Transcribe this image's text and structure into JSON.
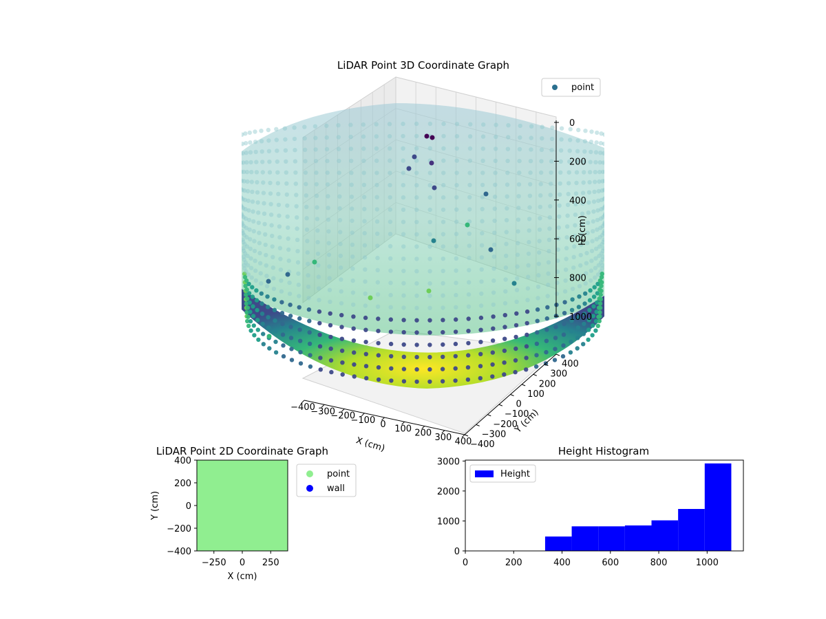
{
  "chart_data": [
    {
      "type": "scatter",
      "projection": "3d",
      "title": "LiDAR Point 3D Coordinate Graph",
      "xlabel": "X (cm)",
      "ylabel": "Y (cm)",
      "zlabel": "H (cm)",
      "xlim": [
        -400,
        400
      ],
      "ylim": [
        -400,
        400
      ],
      "zlim": [
        0,
        1000
      ],
      "z_inverted": true,
      "x_ticks": [
        "−400",
        "−300",
        "−200",
        "−100",
        "0",
        "100",
        "200",
        "300",
        "400"
      ],
      "y_ticks": [
        "−400",
        "−300",
        "−200",
        "−100",
        "0",
        "100",
        "200",
        "300",
        "400"
      ],
      "z_ticks": [
        "0",
        "200",
        "400",
        "600",
        "800",
        "1000"
      ],
      "colormap": "viridis",
      "legend": {
        "position": "top-right",
        "entries": [
          "point"
        ]
      },
      "series": [
        {
          "name": "point",
          "description_of_shape": "hemispherical bowl of points, height increasing toward the center, ~800 cm radius, max height ~1100 cm",
          "sample_outliers": [
            {
              "x": -40,
              "y": 200,
              "h": 60
            },
            {
              "x": -30,
              "y": 210,
              "h": 70
            },
            {
              "x": -100,
              "y": 150,
              "h": 230
            },
            {
              "x": 120,
              "y": -80,
              "h": 520
            },
            {
              "x": -300,
              "y": -100,
              "h": 760
            },
            {
              "x": 200,
              "y": -250,
              "h": 780
            }
          ]
        }
      ],
      "grid": true
    },
    {
      "type": "scatter",
      "title": "LiDAR Point 2D Coordinate Graph",
      "xlabel": "X (cm)",
      "ylabel": "Y (cm)",
      "xlim": [
        -400,
        400
      ],
      "ylim": [
        -400,
        400
      ],
      "x_ticks": [
        "−250",
        "0",
        "250"
      ],
      "y_ticks": [
        "400",
        "200",
        "0",
        "−200",
        "−400"
      ],
      "legend": {
        "position": "outside-right",
        "entries": [
          "point",
          "wall"
        ]
      },
      "series": [
        {
          "name": "point",
          "color": "#90ee90",
          "coverage": "fills entire plot area"
        },
        {
          "name": "wall",
          "color": "#0000ff"
        }
      ]
    },
    {
      "type": "bar",
      "subtype": "histogram",
      "title": "Height Histogram",
      "xlim": [
        0,
        1150
      ],
      "ylim": [
        0,
        3000
      ],
      "x_ticks": [
        "0",
        "200",
        "400",
        "600",
        "800",
        "1000"
      ],
      "y_ticks": [
        "0",
        "1000",
        "2000",
        "3000"
      ],
      "legend": {
        "position": "top-left",
        "entries": [
          "Height"
        ]
      },
      "color": "#0000ff",
      "bins": [
        {
          "start": 330,
          "end": 440,
          "count": 480
        },
        {
          "start": 440,
          "end": 550,
          "count": 820
        },
        {
          "start": 550,
          "end": 660,
          "count": 820
        },
        {
          "start": 660,
          "end": 770,
          "count": 850
        },
        {
          "start": 770,
          "end": 880,
          "count": 1020
        },
        {
          "start": 880,
          "end": 990,
          "count": 1400
        },
        {
          "start": 990,
          "end": 1100,
          "count": 2920
        }
      ]
    }
  ]
}
